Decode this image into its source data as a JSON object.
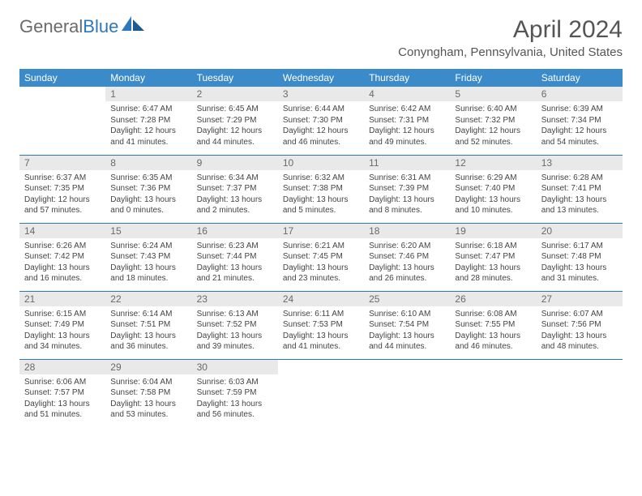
{
  "brand": {
    "part1": "General",
    "part2": "Blue"
  },
  "title": "April 2024",
  "location": "Conyngham, Pennsylvania, United States",
  "colors": {
    "header_bg": "#3b8bca",
    "header_text": "#ffffff",
    "daynum_bg": "#e9e9e9",
    "daynum_text": "#6a6a6a",
    "row_border": "#2e77bb",
    "body_text": "#444444",
    "brand_gray": "#6b6b6b",
    "brand_blue": "#2e77bb"
  },
  "weekdays": [
    "Sunday",
    "Monday",
    "Tuesday",
    "Wednesday",
    "Thursday",
    "Friday",
    "Saturday"
  ],
  "weeks": [
    [
      null,
      {
        "n": "1",
        "sr": "Sunrise: 6:47 AM",
        "ss": "Sunset: 7:28 PM",
        "dl": "Daylight: 12 hours and 41 minutes."
      },
      {
        "n": "2",
        "sr": "Sunrise: 6:45 AM",
        "ss": "Sunset: 7:29 PM",
        "dl": "Daylight: 12 hours and 44 minutes."
      },
      {
        "n": "3",
        "sr": "Sunrise: 6:44 AM",
        "ss": "Sunset: 7:30 PM",
        "dl": "Daylight: 12 hours and 46 minutes."
      },
      {
        "n": "4",
        "sr": "Sunrise: 6:42 AM",
        "ss": "Sunset: 7:31 PM",
        "dl": "Daylight: 12 hours and 49 minutes."
      },
      {
        "n": "5",
        "sr": "Sunrise: 6:40 AM",
        "ss": "Sunset: 7:32 PM",
        "dl": "Daylight: 12 hours and 52 minutes."
      },
      {
        "n": "6",
        "sr": "Sunrise: 6:39 AM",
        "ss": "Sunset: 7:34 PM",
        "dl": "Daylight: 12 hours and 54 minutes."
      }
    ],
    [
      {
        "n": "7",
        "sr": "Sunrise: 6:37 AM",
        "ss": "Sunset: 7:35 PM",
        "dl": "Daylight: 12 hours and 57 minutes."
      },
      {
        "n": "8",
        "sr": "Sunrise: 6:35 AM",
        "ss": "Sunset: 7:36 PM",
        "dl": "Daylight: 13 hours and 0 minutes."
      },
      {
        "n": "9",
        "sr": "Sunrise: 6:34 AM",
        "ss": "Sunset: 7:37 PM",
        "dl": "Daylight: 13 hours and 2 minutes."
      },
      {
        "n": "10",
        "sr": "Sunrise: 6:32 AM",
        "ss": "Sunset: 7:38 PM",
        "dl": "Daylight: 13 hours and 5 minutes."
      },
      {
        "n": "11",
        "sr": "Sunrise: 6:31 AM",
        "ss": "Sunset: 7:39 PM",
        "dl": "Daylight: 13 hours and 8 minutes."
      },
      {
        "n": "12",
        "sr": "Sunrise: 6:29 AM",
        "ss": "Sunset: 7:40 PM",
        "dl": "Daylight: 13 hours and 10 minutes."
      },
      {
        "n": "13",
        "sr": "Sunrise: 6:28 AM",
        "ss": "Sunset: 7:41 PM",
        "dl": "Daylight: 13 hours and 13 minutes."
      }
    ],
    [
      {
        "n": "14",
        "sr": "Sunrise: 6:26 AM",
        "ss": "Sunset: 7:42 PM",
        "dl": "Daylight: 13 hours and 16 minutes."
      },
      {
        "n": "15",
        "sr": "Sunrise: 6:24 AM",
        "ss": "Sunset: 7:43 PM",
        "dl": "Daylight: 13 hours and 18 minutes."
      },
      {
        "n": "16",
        "sr": "Sunrise: 6:23 AM",
        "ss": "Sunset: 7:44 PM",
        "dl": "Daylight: 13 hours and 21 minutes."
      },
      {
        "n": "17",
        "sr": "Sunrise: 6:21 AM",
        "ss": "Sunset: 7:45 PM",
        "dl": "Daylight: 13 hours and 23 minutes."
      },
      {
        "n": "18",
        "sr": "Sunrise: 6:20 AM",
        "ss": "Sunset: 7:46 PM",
        "dl": "Daylight: 13 hours and 26 minutes."
      },
      {
        "n": "19",
        "sr": "Sunrise: 6:18 AM",
        "ss": "Sunset: 7:47 PM",
        "dl": "Daylight: 13 hours and 28 minutes."
      },
      {
        "n": "20",
        "sr": "Sunrise: 6:17 AM",
        "ss": "Sunset: 7:48 PM",
        "dl": "Daylight: 13 hours and 31 minutes."
      }
    ],
    [
      {
        "n": "21",
        "sr": "Sunrise: 6:15 AM",
        "ss": "Sunset: 7:49 PM",
        "dl": "Daylight: 13 hours and 34 minutes."
      },
      {
        "n": "22",
        "sr": "Sunrise: 6:14 AM",
        "ss": "Sunset: 7:51 PM",
        "dl": "Daylight: 13 hours and 36 minutes."
      },
      {
        "n": "23",
        "sr": "Sunrise: 6:13 AM",
        "ss": "Sunset: 7:52 PM",
        "dl": "Daylight: 13 hours and 39 minutes."
      },
      {
        "n": "24",
        "sr": "Sunrise: 6:11 AM",
        "ss": "Sunset: 7:53 PM",
        "dl": "Daylight: 13 hours and 41 minutes."
      },
      {
        "n": "25",
        "sr": "Sunrise: 6:10 AM",
        "ss": "Sunset: 7:54 PM",
        "dl": "Daylight: 13 hours and 44 minutes."
      },
      {
        "n": "26",
        "sr": "Sunrise: 6:08 AM",
        "ss": "Sunset: 7:55 PM",
        "dl": "Daylight: 13 hours and 46 minutes."
      },
      {
        "n": "27",
        "sr": "Sunrise: 6:07 AM",
        "ss": "Sunset: 7:56 PM",
        "dl": "Daylight: 13 hours and 48 minutes."
      }
    ],
    [
      {
        "n": "28",
        "sr": "Sunrise: 6:06 AM",
        "ss": "Sunset: 7:57 PM",
        "dl": "Daylight: 13 hours and 51 minutes."
      },
      {
        "n": "29",
        "sr": "Sunrise: 6:04 AM",
        "ss": "Sunset: 7:58 PM",
        "dl": "Daylight: 13 hours and 53 minutes."
      },
      {
        "n": "30",
        "sr": "Sunrise: 6:03 AM",
        "ss": "Sunset: 7:59 PM",
        "dl": "Daylight: 13 hours and 56 minutes."
      },
      null,
      null,
      null,
      null
    ]
  ]
}
